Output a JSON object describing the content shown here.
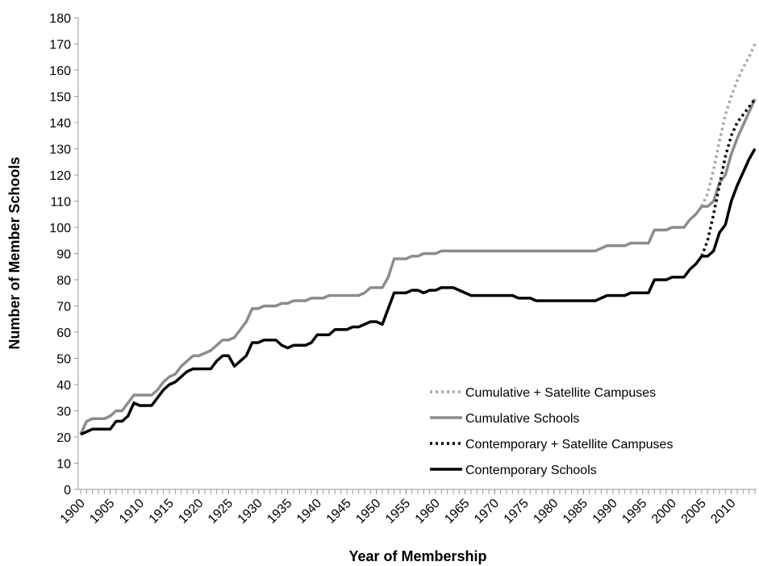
{
  "chart_data": {
    "type": "line",
    "x_label": "Year of Membership",
    "y_label": "Number of Member Schools",
    "x": [
      1900,
      1901,
      1902,
      1903,
      1904,
      1905,
      1906,
      1907,
      1908,
      1909,
      1910,
      1911,
      1912,
      1913,
      1914,
      1915,
      1916,
      1917,
      1918,
      1919,
      1920,
      1921,
      1922,
      1923,
      1924,
      1925,
      1926,
      1927,
      1928,
      1929,
      1930,
      1931,
      1932,
      1933,
      1934,
      1935,
      1936,
      1937,
      1938,
      1939,
      1940,
      1941,
      1942,
      1943,
      1944,
      1945,
      1946,
      1947,
      1948,
      1949,
      1950,
      1951,
      1952,
      1953,
      1954,
      1955,
      1956,
      1957,
      1958,
      1959,
      1960,
      1961,
      1962,
      1963,
      1964,
      1965,
      1966,
      1967,
      1968,
      1969,
      1970,
      1971,
      1972,
      1973,
      1974,
      1975,
      1976,
      1977,
      1978,
      1979,
      1980,
      1981,
      1982,
      1983,
      1984,
      1985,
      1986,
      1987,
      1988,
      1989,
      1990,
      1991,
      1992,
      1993,
      1994,
      1995,
      1996,
      1997,
      1998,
      1999,
      2000,
      2001,
      2002,
      2003,
      2004,
      2005,
      2006,
      2007,
      2008,
      2009,
      2010,
      2011,
      2012,
      2013,
      2014
    ],
    "series": [
      {
        "name": "Cumulative + Satellite Campuses",
        "color": "#a6a6a6",
        "style": "dotted",
        "values": [
          null,
          null,
          null,
          null,
          null,
          null,
          null,
          null,
          null,
          null,
          null,
          null,
          null,
          null,
          null,
          null,
          null,
          null,
          null,
          null,
          null,
          null,
          null,
          null,
          null,
          null,
          null,
          null,
          null,
          null,
          null,
          null,
          null,
          null,
          null,
          null,
          null,
          null,
          null,
          null,
          null,
          null,
          null,
          null,
          null,
          null,
          null,
          null,
          null,
          null,
          null,
          null,
          null,
          null,
          null,
          null,
          null,
          null,
          null,
          null,
          null,
          null,
          null,
          null,
          null,
          null,
          null,
          null,
          null,
          null,
          null,
          null,
          null,
          null,
          null,
          null,
          null,
          null,
          null,
          null,
          null,
          null,
          null,
          null,
          null,
          null,
          null,
          null,
          null,
          null,
          null,
          null,
          null,
          null,
          null,
          null,
          null,
          null,
          null,
          null,
          null,
          null,
          null,
          null,
          null,
          108,
          113,
          122,
          133,
          143,
          150,
          156,
          161,
          165,
          170
        ]
      },
      {
        "name": "Cumulative Schools",
        "color": "#8c8c8c",
        "style": "solid",
        "values": [
          21,
          26,
          27,
          27,
          27,
          28,
          30,
          30,
          33,
          36,
          36,
          36,
          36,
          38,
          41,
          43,
          44,
          47,
          49,
          51,
          51,
          52,
          53,
          55,
          57,
          57,
          58,
          61,
          64,
          69,
          69,
          70,
          70,
          70,
          71,
          71,
          72,
          72,
          72,
          73,
          73,
          73,
          74,
          74,
          74,
          74,
          74,
          74,
          75,
          77,
          77,
          77,
          81,
          88,
          88,
          88,
          89,
          89,
          90,
          90,
          90,
          91,
          91,
          91,
          91,
          91,
          91,
          91,
          91,
          91,
          91,
          91,
          91,
          91,
          91,
          91,
          91,
          91,
          91,
          91,
          91,
          91,
          91,
          91,
          91,
          91,
          91,
          91,
          92,
          93,
          93,
          93,
          93,
          94,
          94,
          94,
          94,
          99,
          99,
          99,
          100,
          100,
          100,
          103,
          105,
          108,
          108,
          110,
          117,
          120,
          128,
          134,
          139,
          144,
          149
        ]
      },
      {
        "name": "Contemporary + Satellite Campuses",
        "color": "#000000",
        "style": "dotted",
        "values": [
          null,
          null,
          null,
          null,
          null,
          null,
          null,
          null,
          null,
          null,
          null,
          null,
          null,
          null,
          null,
          null,
          null,
          null,
          null,
          null,
          null,
          null,
          null,
          null,
          null,
          null,
          null,
          null,
          null,
          null,
          null,
          null,
          null,
          null,
          null,
          null,
          null,
          null,
          null,
          null,
          null,
          null,
          null,
          null,
          null,
          null,
          null,
          null,
          null,
          null,
          null,
          null,
          null,
          null,
          null,
          null,
          null,
          null,
          null,
          null,
          null,
          null,
          null,
          null,
          null,
          null,
          null,
          null,
          null,
          null,
          null,
          null,
          null,
          null,
          null,
          null,
          null,
          null,
          null,
          null,
          null,
          null,
          null,
          null,
          null,
          null,
          null,
          null,
          null,
          null,
          null,
          null,
          null,
          null,
          null,
          null,
          null,
          null,
          null,
          null,
          null,
          null,
          null,
          null,
          null,
          89,
          95,
          105,
          116,
          127,
          135,
          140,
          143,
          146,
          149
        ]
      },
      {
        "name": "Contemporary Schools",
        "color": "#000000",
        "style": "solid",
        "values": [
          21,
          22,
          23,
          23,
          23,
          23,
          26,
          26,
          28,
          33,
          32,
          32,
          32,
          35,
          38,
          40,
          41,
          43,
          45,
          46,
          46,
          46,
          46,
          49,
          51,
          51,
          47,
          49,
          51,
          56,
          56,
          57,
          57,
          57,
          55,
          54,
          55,
          55,
          55,
          56,
          59,
          59,
          59,
          61,
          61,
          61,
          62,
          62,
          63,
          64,
          64,
          63,
          69,
          75,
          75,
          75,
          76,
          76,
          75,
          76,
          76,
          77,
          77,
          77,
          76,
          75,
          74,
          74,
          74,
          74,
          74,
          74,
          74,
          74,
          73,
          73,
          73,
          72,
          72,
          72,
          72,
          72,
          72,
          72,
          72,
          72,
          72,
          72,
          73,
          74,
          74,
          74,
          74,
          75,
          75,
          75,
          75,
          80,
          80,
          80,
          81,
          81,
          81,
          84,
          86,
          89,
          89,
          91,
          98,
          101,
          110,
          116,
          121,
          126,
          130
        ]
      }
    ],
    "xlim": [
      1900,
      2014
    ],
    "xticks": [
      1900,
      1905,
      1910,
      1915,
      1920,
      1925,
      1930,
      1935,
      1940,
      1945,
      1950,
      1955,
      1960,
      1965,
      1970,
      1975,
      1980,
      1985,
      1990,
      1995,
      2000,
      2005,
      2010
    ],
    "ylim": [
      0,
      180
    ],
    "yticks": [
      0,
      10,
      20,
      30,
      40,
      50,
      60,
      70,
      80,
      90,
      100,
      110,
      120,
      130,
      140,
      150,
      160,
      170,
      180
    ],
    "legend": "lower right"
  }
}
